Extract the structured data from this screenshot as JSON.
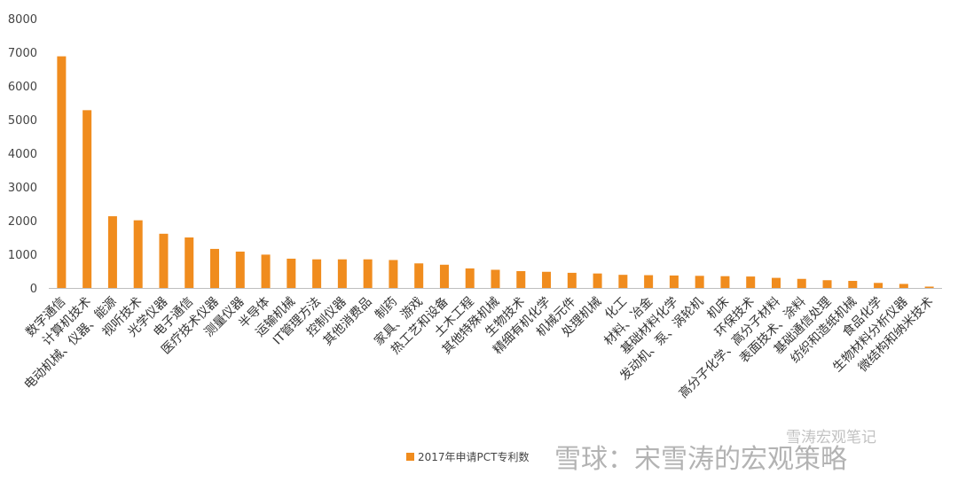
{
  "chart_data": {
    "type": "bar",
    "title": "",
    "xlabel": "",
    "ylabel": "",
    "ylim": [
      0,
      8000
    ],
    "yticks": [
      0,
      1000,
      2000,
      3000,
      4000,
      5000,
      6000,
      7000,
      8000
    ],
    "grid": false,
    "legend_position": "bottom-left",
    "series": [
      {
        "name": "2017年申请PCT专利数",
        "color": "#f08c1e",
        "values": [
          6880,
          5280,
          2130,
          2010,
          1610,
          1500,
          1160,
          1080,
          990,
          870,
          850,
          850,
          850,
          830,
          730,
          690,
          580,
          540,
          500,
          480,
          450,
          430,
          390,
          380,
          370,
          360,
          350,
          340,
          300,
          270,
          230,
          210,
          150,
          120,
          40
        ]
      }
    ],
    "categories": [
      "数字通信",
      "计算机技术",
      "电动机械、仪器、能源",
      "视听技术",
      "光学仪器",
      "电子通信",
      "医疗技术仪器",
      "测量仪器",
      "半导体",
      "运输机械",
      "IT管理方法",
      "控制仪器",
      "其他消费品",
      "制药",
      "家具、游戏",
      "热工艺和设备",
      "土木工程",
      "其他特殊机械",
      "生物技术",
      "精细有机化学",
      "机械元件",
      "处理机械",
      "化工",
      "材料、冶金",
      "基础材料化学",
      "发动机、泵、涡轮机",
      "机床",
      "环保技术",
      "高分子化学、高分子材料",
      "表面技术、涂料",
      "基础通信处理",
      "纺织和造纸机械",
      "食品化学",
      "生物材料分析仪器",
      "微结构和纳米技术"
    ]
  },
  "watermark": {
    "main": "雪球：宋雪涛的宏观策略",
    "sub": "雪涛宏观笔记"
  }
}
